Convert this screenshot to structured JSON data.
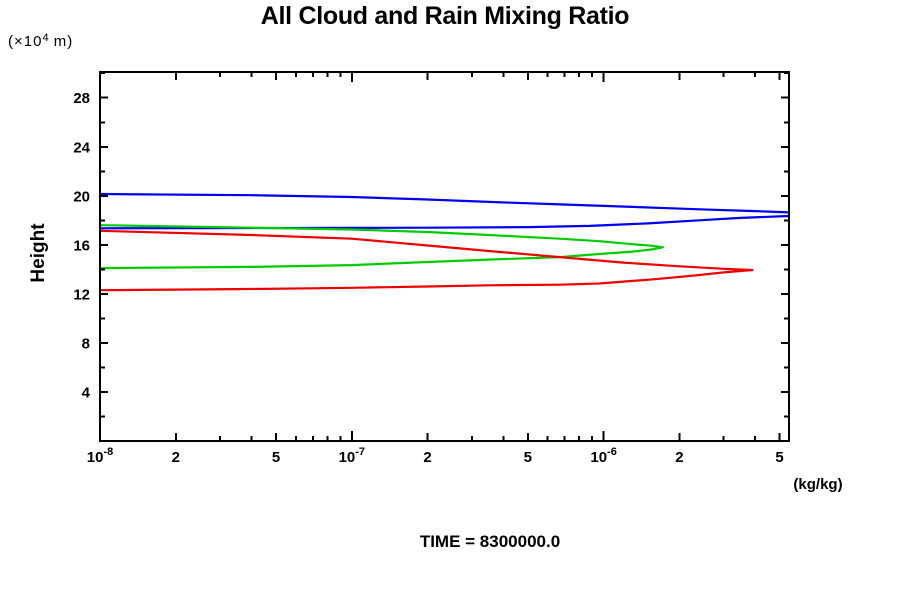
{
  "title": "All Cloud and Rain Mixing Ratio",
  "time_annotation": "TIME = 8300000.0",
  "chart_data": {
    "type": "line",
    "title": "All Cloud and Rain Mixing Ratio",
    "x_scale": "log",
    "xlim": [
      1e-08,
      5.45e-06
    ],
    "ylim": [
      0,
      30.1
    ],
    "xlabel_units": "(kg/kg)",
    "ylabel": "Height",
    "ylabel_units": {
      "prefix": "(×10",
      "sup": "4",
      "suffix": " m)"
    },
    "grid": false,
    "legend": "none",
    "frame_color": "#000000",
    "x_ticks_labeled": [
      {
        "v": 1e-08,
        "label": "10",
        "sup": "-8"
      },
      {
        "v": 2e-08,
        "label": "2"
      },
      {
        "v": 5e-08,
        "label": "5"
      },
      {
        "v": 1e-07,
        "label": "10",
        "sup": "-7"
      },
      {
        "v": 2e-07,
        "label": "2"
      },
      {
        "v": 5e-07,
        "label": "5"
      },
      {
        "v": 1e-06,
        "label": "10",
        "sup": "-6"
      },
      {
        "v": 2e-06,
        "label": "2"
      },
      {
        "v": 5e-06,
        "label": "5"
      }
    ],
    "x_ticks_minor": [
      3e-08,
      4e-08,
      6e-08,
      7e-08,
      8e-08,
      9e-08,
      3e-07,
      4e-07,
      6e-07,
      7e-07,
      8e-07,
      9e-07,
      3e-06,
      4e-06
    ],
    "y_ticks_major": [
      4,
      8,
      12,
      16,
      20,
      24,
      28
    ],
    "y_ticks_minor": [
      2,
      6,
      10,
      14,
      18,
      22,
      26,
      30
    ],
    "series": [
      {
        "name": "blue-curve",
        "color": "#0000ee",
        "points": [
          [
            1e-08,
            20.15
          ],
          [
            4e-08,
            20.05
          ],
          [
            1e-07,
            19.9
          ],
          [
            2e-07,
            19.7
          ],
          [
            3.5e-07,
            19.5
          ],
          [
            6.7e-07,
            19.3
          ],
          [
            1.3e-06,
            19.1
          ],
          [
            2.4e-06,
            18.9
          ],
          [
            4e-06,
            18.75
          ],
          [
            5.45e-06,
            18.65
          ],
          [
            9e-06,
            18.5
          ],
          [
            5.45e-06,
            18.35
          ],
          [
            3.5e-06,
            18.2
          ],
          [
            2.4e-06,
            18.0
          ],
          [
            1.5e-06,
            17.75
          ],
          [
            8.8e-07,
            17.55
          ],
          [
            5e-07,
            17.45
          ],
          [
            2e-07,
            17.4
          ],
          [
            1e-07,
            17.38
          ],
          [
            1e-08,
            17.35
          ]
        ]
      },
      {
        "name": "green-curve",
        "color": "#00cc00",
        "points": [
          [
            1e-08,
            17.6
          ],
          [
            4e-08,
            17.4
          ],
          [
            1e-07,
            17.25
          ],
          [
            2e-07,
            17.05
          ],
          [
            3.5e-07,
            16.8
          ],
          [
            6.7e-07,
            16.5
          ],
          [
            9.6e-07,
            16.3
          ],
          [
            1.3e-06,
            16.05
          ],
          [
            1.55e-06,
            15.93
          ],
          [
            1.72e-06,
            15.8
          ],
          [
            1.55e-06,
            15.62
          ],
          [
            1.3e-06,
            15.45
          ],
          [
            9.6e-07,
            15.25
          ],
          [
            6.7e-07,
            15.0
          ],
          [
            3.5e-07,
            14.8
          ],
          [
            2e-07,
            14.6
          ],
          [
            1e-07,
            14.35
          ],
          [
            4e-08,
            14.2
          ],
          [
            1e-08,
            14.1
          ]
        ]
      },
      {
        "name": "red-curve",
        "color": "#ee0000",
        "points": [
          [
            1e-08,
            17.15
          ],
          [
            4e-08,
            16.8
          ],
          [
            1e-07,
            16.5
          ],
          [
            2e-07,
            15.95
          ],
          [
            3.5e-07,
            15.5
          ],
          [
            6.7e-07,
            15.0
          ],
          [
            1.2e-06,
            14.55
          ],
          [
            2e-06,
            14.25
          ],
          [
            3e-06,
            14.05
          ],
          [
            3.9e-06,
            13.95
          ],
          [
            3e-06,
            13.75
          ],
          [
            2.3e-06,
            13.5
          ],
          [
            1.6e-06,
            13.2
          ],
          [
            9.6e-07,
            12.85
          ],
          [
            6.7e-07,
            12.75
          ],
          [
            3.5e-07,
            12.7
          ],
          [
            2e-07,
            12.6
          ],
          [
            1e-07,
            12.5
          ],
          [
            4e-08,
            12.4
          ],
          [
            1e-08,
            12.3
          ]
        ]
      }
    ]
  }
}
